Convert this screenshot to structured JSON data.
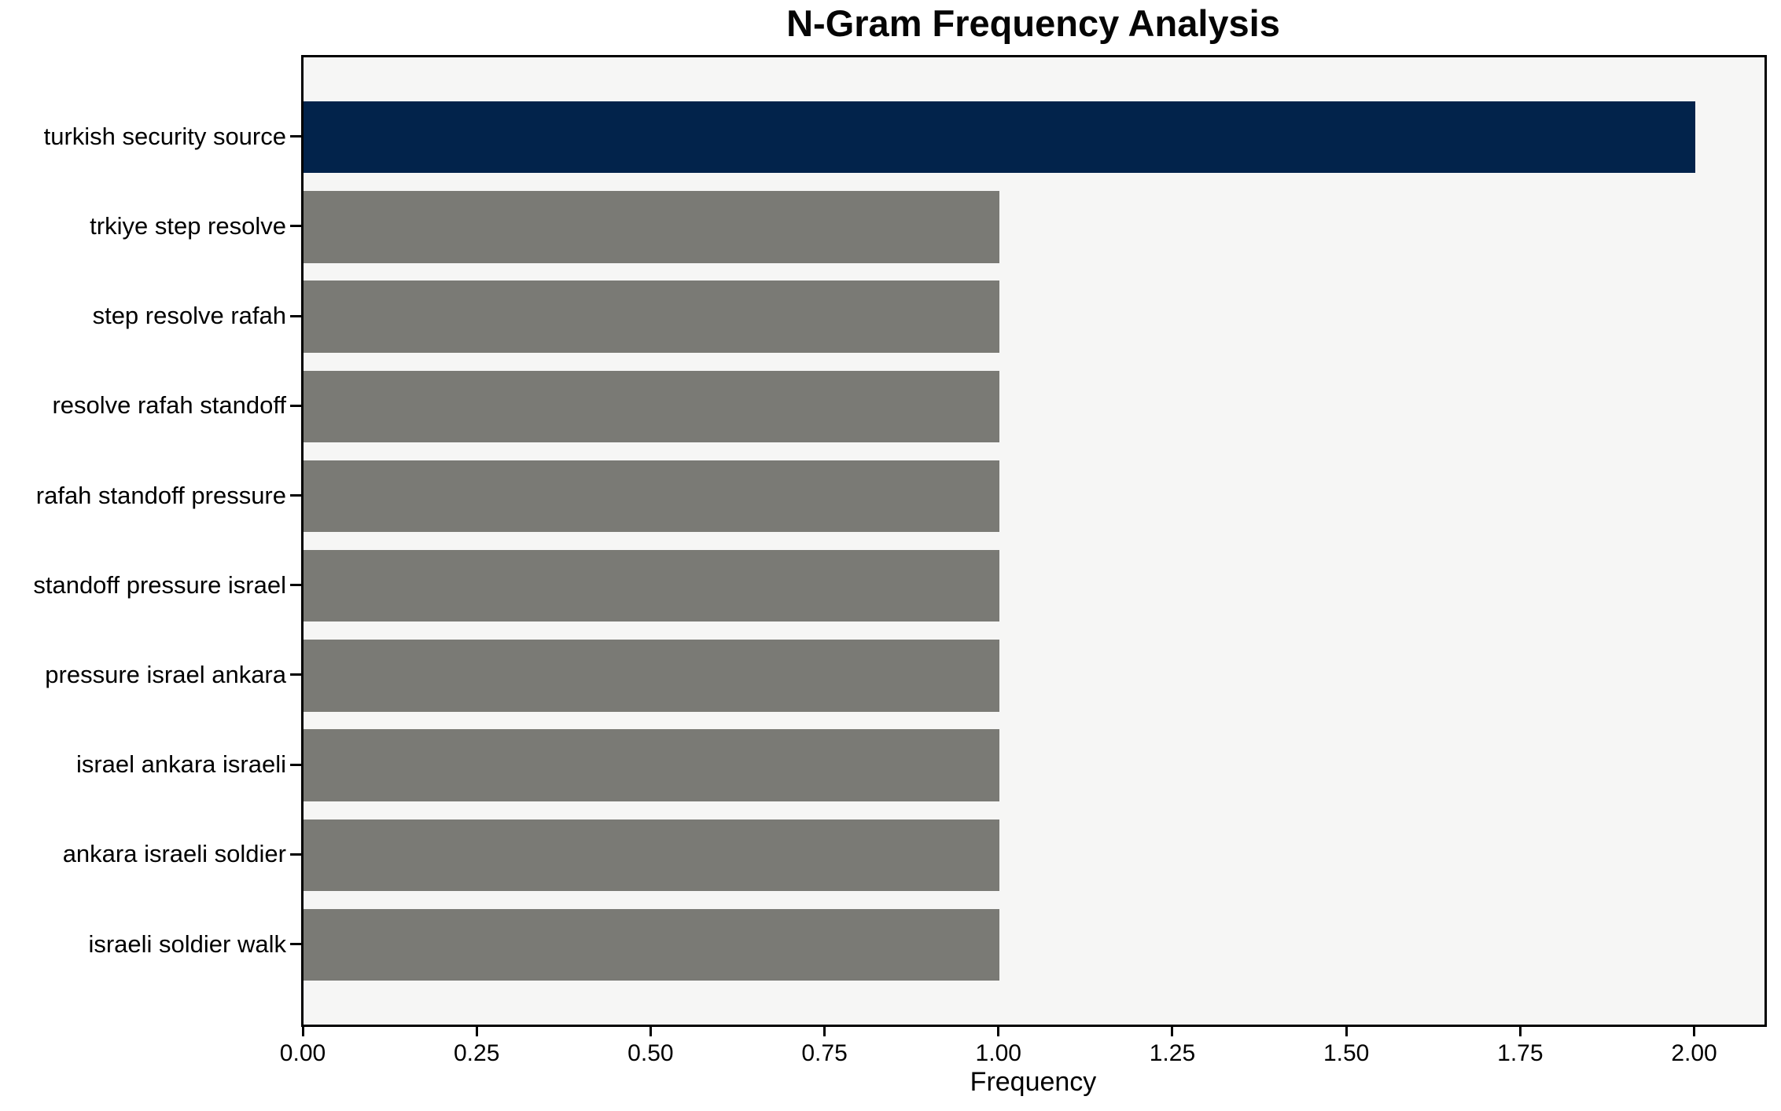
{
  "chart_data": {
    "type": "bar",
    "orientation": "horizontal",
    "title": "N-Gram Frequency Analysis",
    "xlabel": "Frequency",
    "ylabel": "",
    "categories": [
      "turkish security source",
      "trkiye step resolve",
      "step resolve rafah",
      "resolve rafah standoff",
      "rafah standoff pressure",
      "standoff pressure israel",
      "pressure israel ankara",
      "israel ankara israeli",
      "ankara israeli soldier",
      "israeli soldier walk"
    ],
    "values": [
      2,
      1,
      1,
      1,
      1,
      1,
      1,
      1,
      1,
      1
    ],
    "bar_colors": [
      "#02234b",
      "#7a7a75",
      "#7a7a75",
      "#7a7a75",
      "#7a7a75",
      "#7a7a75",
      "#7a7a75",
      "#7a7a75",
      "#7a7a75",
      "#7a7a75"
    ],
    "xlim": [
      0,
      2.1
    ],
    "x_ticks": [
      {
        "value": 0.0,
        "label": "0.00"
      },
      {
        "value": 0.25,
        "label": "0.25"
      },
      {
        "value": 0.5,
        "label": "0.50"
      },
      {
        "value": 0.75,
        "label": "0.75"
      },
      {
        "value": 1.0,
        "label": "1.00"
      },
      {
        "value": 1.25,
        "label": "1.25"
      },
      {
        "value": 1.5,
        "label": "1.50"
      },
      {
        "value": 1.75,
        "label": "1.75"
      },
      {
        "value": 2.0,
        "label": "2.00"
      }
    ],
    "grid": false,
    "legend": null,
    "colors": {
      "highlight_bar": "#02234b",
      "default_bar": "#7a7a75",
      "plot_background": "#f6f6f5",
      "figure_background": "#ffffff",
      "spine": "#000000",
      "text": "#000000"
    }
  }
}
